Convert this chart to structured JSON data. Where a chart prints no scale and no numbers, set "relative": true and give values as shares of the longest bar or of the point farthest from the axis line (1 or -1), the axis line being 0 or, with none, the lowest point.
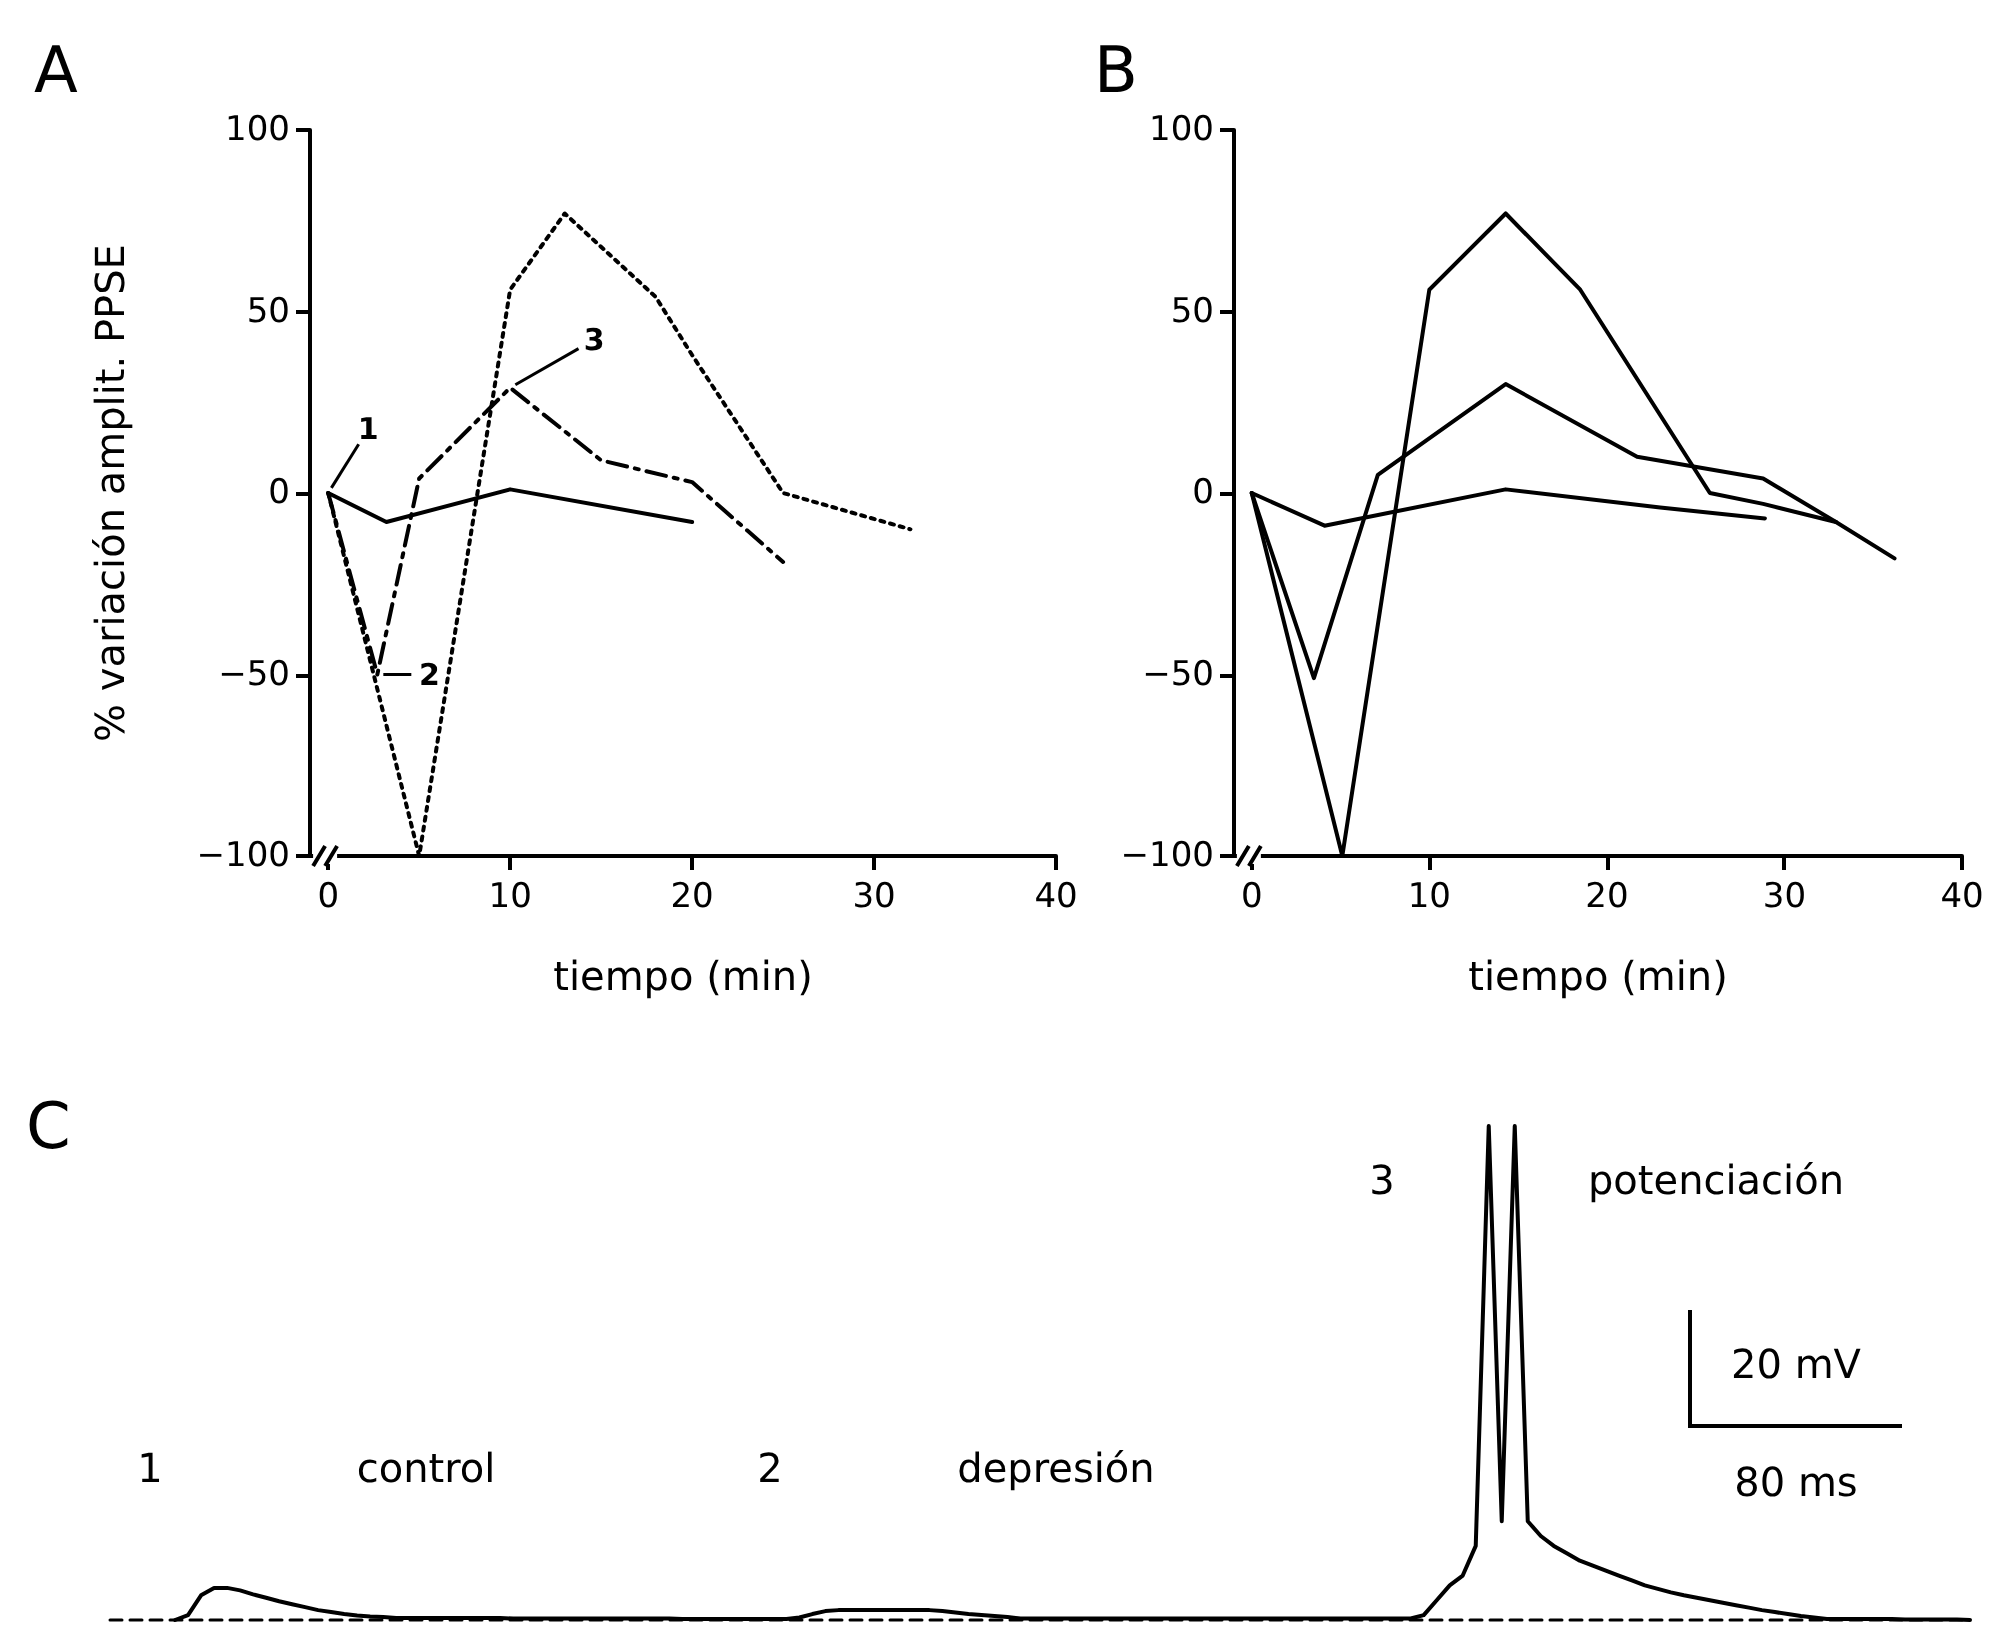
{
  "chart_data": [
    {
      "type": "line",
      "title": "A",
      "xlabel": "tiempo (min)",
      "ylabel": "% variación amplit. PPSE",
      "xlim": [
        -1,
        40
      ],
      "xticks": [
        0,
        10,
        20,
        30,
        40
      ],
      "ylim": [
        -100,
        100
      ],
      "yticks": [
        -100,
        -50,
        0,
        50,
        100
      ],
      "marker": "none",
      "series": [
        {
          "color": "#000000",
          "line_style": "solid",
          "x": [
            0,
            3.2,
            10,
            20
          ],
          "values": [
            0,
            -8,
            1,
            -8
          ]
        },
        {
          "color": "#000000",
          "line_style": "dashed",
          "x": [
            0,
            2.7,
            5,
            10,
            15,
            20,
            25
          ],
          "values": [
            0,
            -50,
            4,
            29,
            9,
            3,
            -19
          ]
        },
        {
          "color": "#000000",
          "line_style": "dotted",
          "x": [
            0,
            5,
            10,
            13,
            18,
            20,
            25,
            32
          ],
          "values": [
            0,
            -100,
            56,
            77,
            54,
            38,
            0,
            -10
          ]
        }
      ],
      "annotations": [
        {
          "text": "1",
          "x": 0,
          "y": 0
        },
        {
          "text": "2",
          "x": 2.7,
          "y": -50
        },
        {
          "text": "3",
          "x": 10,
          "y": 29
        }
      ]
    },
    {
      "type": "line",
      "title": "B",
      "xlabel": "tiempo (min)",
      "xlim": [
        -1,
        40
      ],
      "xticks": [
        0,
        10,
        20,
        30,
        40
      ],
      "ylim": [
        -100,
        100
      ],
      "yticks": [
        -100,
        -50,
        0,
        50,
        100
      ],
      "marker": "none",
      "line_style": "solid",
      "series": [
        {
          "color": "#000000",
          "x": [
            0,
            4.1,
            14.3,
            23,
            28.9
          ],
          "values": [
            0,
            -9,
            1,
            -4,
            -7
          ]
        },
        {
          "color": "#000000",
          "x": [
            0,
            3.5,
            7.1,
            14.3,
            21.7,
            28.8,
            32.9,
            36.2
          ],
          "values": [
            0,
            -51,
            5,
            30,
            10,
            4,
            -8,
            -18
          ]
        },
        {
          "color": "#000000",
          "x": [
            0,
            5.1,
            10,
            14.3,
            18.5,
            25.8,
            28.8,
            32.9
          ],
          "values": [
            0,
            -100,
            56,
            77,
            56,
            0,
            -3,
            -8
          ]
        }
      ]
    },
    {
      "type": "line",
      "title": "C",
      "relative": true,
      "marker": "none",
      "line_style": "solid",
      "categories": [
        null,
        null,
        null,
        null,
        null,
        null,
        null,
        null,
        null,
        null,
        null,
        null,
        null,
        null,
        null,
        null,
        null,
        null,
        null,
        null,
        null,
        null,
        null,
        null,
        null,
        null,
        null,
        null,
        null,
        null,
        null,
        null,
        null,
        null,
        null,
        null,
        null,
        null,
        null,
        null,
        null,
        null,
        null,
        null,
        null,
        null,
        null,
        null,
        null,
        null,
        null,
        null,
        null,
        null,
        null,
        null,
        null,
        null,
        null,
        null,
        null,
        null,
        null,
        null,
        null,
        null,
        null,
        null,
        null,
        null,
        null,
        null,
        null,
        null,
        null,
        null,
        null,
        null,
        null,
        null,
        null,
        null,
        null,
        null,
        null,
        null,
        null,
        null,
        null,
        null,
        null,
        null,
        null,
        null,
        null,
        null,
        null,
        null,
        null,
        null,
        null,
        null,
        null,
        null,
        null,
        null,
        null,
        null,
        null,
        null,
        null,
        null,
        null,
        null,
        null,
        null,
        null,
        null,
        null,
        null,
        null,
        null,
        null,
        null,
        null,
        null,
        null,
        null,
        null,
        null,
        null,
        null,
        null,
        null,
        null,
        null,
        null,
        null,
        null,
        null,
        null,
        null,
        null,
        null
      ],
      "series": [
        {
          "color": "#000000",
          "values": [
            null,
            null,
            null,
            null,
            null,
            0,
            0.01,
            0.05,
            0.065,
            0.065,
            0.06,
            0.052,
            0.045,
            0.038,
            0.032,
            0.026,
            0.02,
            0.016,
            0.012,
            0.009,
            0.007,
            0.006,
            0.004,
            0.004,
            0.004,
            0.004,
            0.004,
            0.004,
            0.004,
            0.004,
            0.004,
            0.003,
            0.003,
            0.003,
            0.003,
            0.003,
            0.003,
            0.003,
            0.003,
            0.003,
            0.003,
            0.003,
            0.003,
            0.003,
            0.002,
            0.002,
            0.002,
            0.002,
            0.002,
            0.002,
            0.002,
            0.002,
            0.002,
            0.005,
            0.012,
            0.018,
            0.02,
            0.02,
            0.02,
            0.02,
            0.02,
            0.02,
            0.02,
            0.02,
            0.018,
            0.015,
            0.012,
            0.01,
            0.008,
            0.006,
            0.003,
            0.003,
            0.003,
            0.003,
            0.003,
            0.003,
            0.003,
            0.003,
            0.003,
            0.003,
            0.003,
            0.003,
            0.003,
            0.003,
            0.003,
            0.003,
            0.003,
            0.003,
            0.003,
            0.003,
            0.003,
            0.003,
            0.003,
            0.003,
            0.003,
            0.003,
            0.003,
            0.003,
            0.003,
            0.003,
            0.003,
            0.01,
            0.04,
            0.07,
            0.09,
            0.15,
            1,
            0.2,
            1,
            0.2,
            0.17,
            0.15,
            0.135,
            0.12,
            0.11,
            0.1,
            0.09,
            0.08,
            0.07,
            0.063,
            0.056,
            0.05,
            0.045,
            0.04,
            0.035,
            0.03,
            0.025,
            0.02,
            0.016,
            0.012,
            0.008,
            0.005,
            0.002,
            0.002,
            0.002,
            0.002,
            0.002,
            0.002,
            0.001,
            0.001,
            0.001,
            0.001,
            0.001,
            0
          ]
        }
      ],
      "annotations": [
        "1",
        "control",
        "2",
        "depresión",
        "3",
        "potenciación",
        "20 mV",
        "80 ms"
      ]
    }
  ]
}
